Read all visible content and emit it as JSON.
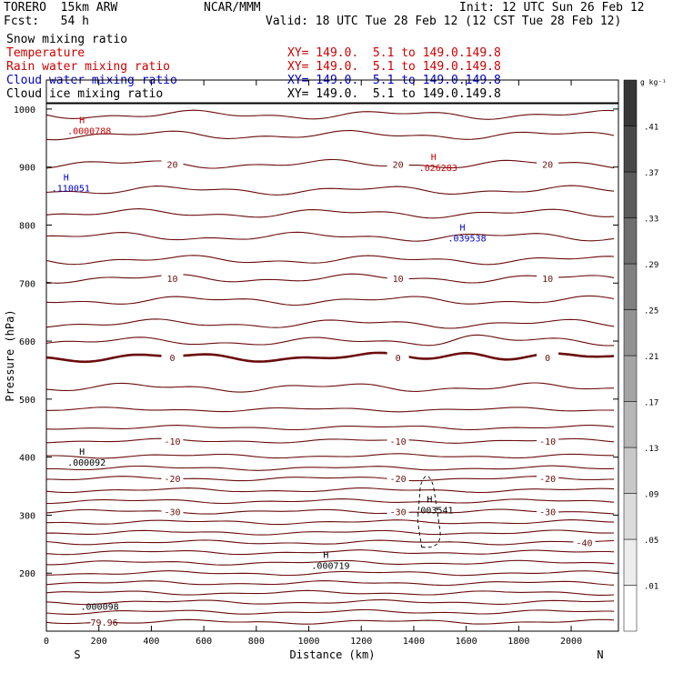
{
  "header": {
    "model": "TORERO  15km ARW",
    "org": "NCAR/MMM",
    "init": "Init: 12 UTC Sun 26 Feb 12",
    "fcst": "Fcst:   54 h",
    "valid": "Valid: 18 UTC Tue 28 Feb 12 (12 CST Tue 28 Feb 12)"
  },
  "fields": [
    {
      "name": "Snow mixing ratio",
      "color": "#000000",
      "xy": ""
    },
    {
      "name": "Temperature",
      "color": "#cc0000",
      "xy": "XY= 149.0.  5.1 to 149.0.149.8"
    },
    {
      "name": "Rain water mixing ratio",
      "color": "#cc0000",
      "xy": "XY= 149.0.  5.1 to 149.0.149.8"
    },
    {
      "name": "Cloud water mixing ratio",
      "color": "#0000cc",
      "xy": "XY= 149.0.  5.1 to 149.0.149.8"
    },
    {
      "name": "Cloud ice mixing ratio",
      "color": "#000000",
      "xy": "XY= 149.0.  5.1 to 149.0.149.8"
    }
  ],
  "chart_data": {
    "type": "cross-section contour",
    "xlabel": "Distance (km)",
    "ylabel": "Pressure (hPa)",
    "xlim": [
      0,
      2180
    ],
    "ylim": [
      1050,
      100
    ],
    "x_ticks": [
      0,
      200,
      400,
      600,
      800,
      1000,
      1200,
      1400,
      1600,
      1800,
      2000
    ],
    "y_ticks": [
      200,
      300,
      400,
      500,
      600,
      700,
      800,
      900,
      1000
    ],
    "x_end_labels": [
      "S",
      "N"
    ],
    "colorbar": {
      "unit": "g kg⁻¹",
      "levels": [
        0.01,
        0.05,
        0.09,
        0.13,
        0.17,
        0.21,
        0.25,
        0.29,
        0.33,
        0.37,
        0.41
      ],
      "labels": [
        ".01",
        ".05",
        ".09",
        ".13",
        ".17",
        ".21",
        ".25",
        ".29",
        ".33",
        ".37",
        ".41"
      ]
    },
    "isotherms": [
      {
        "p": 990,
        "label": ""
      },
      {
        "p": 955,
        "label": ""
      },
      {
        "p": 905,
        "label": "20"
      },
      {
        "p": 860,
        "label": ""
      },
      {
        "p": 820,
        "label": ""
      },
      {
        "p": 780,
        "label": ""
      },
      {
        "p": 740,
        "label": ""
      },
      {
        "p": 708,
        "label": "10"
      },
      {
        "p": 670,
        "label": ""
      },
      {
        "p": 630,
        "label": ""
      },
      {
        "p": 599,
        "label": ""
      },
      {
        "p": 572,
        "label": "0",
        "bold": true
      },
      {
        "p": 520,
        "label": ""
      },
      {
        "p": 482,
        "label": ""
      },
      {
        "p": 451,
        "label": ""
      },
      {
        "p": 428,
        "label": "-10"
      },
      {
        "p": 402,
        "label": ""
      },
      {
        "p": 381,
        "label": ""
      },
      {
        "p": 363,
        "label": "-20"
      },
      {
        "p": 343,
        "label": ""
      },
      {
        "p": 324,
        "label": ""
      },
      {
        "p": 306,
        "label": "-30"
      },
      {
        "p": 288,
        "label": ""
      },
      {
        "p": 270,
        "label": ""
      },
      {
        "p": 253,
        "label": "-40"
      },
      {
        "p": 236,
        "label": ""
      },
      {
        "p": 218,
        "label": ""
      },
      {
        "p": 200,
        "label": ""
      },
      {
        "p": 183,
        "label": ""
      },
      {
        "p": 166,
        "label": ""
      },
      {
        "p": 150,
        "label": ""
      },
      {
        "p": 133,
        "label": ""
      },
      {
        "p": 116,
        "label": "-79.96"
      }
    ],
    "maxima": [
      {
        "x": 130,
        "p": 137,
        "value": ".000098",
        "color": "#000000",
        "h": false
      },
      {
        "x": 1010,
        "p": 207,
        "value": ".000719",
        "color": "#000000",
        "h": true
      },
      {
        "x": 1405,
        "p": 303,
        "value": ".003541",
        "color": "#000000",
        "h": true
      },
      {
        "x": 80,
        "p": 385,
        "value": ".000092",
        "color": "#000000",
        "h": true
      },
      {
        "x": 1530,
        "p": 772,
        "value": ".039538",
        "color": "#0000cc",
        "h": true
      },
      {
        "x": 20,
        "p": 858,
        "value": ".110051",
        "color": "#0000cc",
        "h": true
      },
      {
        "x": 1420,
        "p": 893,
        "value": ".026283",
        "color": "#cc0000",
        "h": true
      },
      {
        "x": 80,
        "p": 957,
        "value": ".0000788",
        "color": "#cc0000",
        "h": true
      }
    ],
    "bottom_line_p": 1010
  }
}
